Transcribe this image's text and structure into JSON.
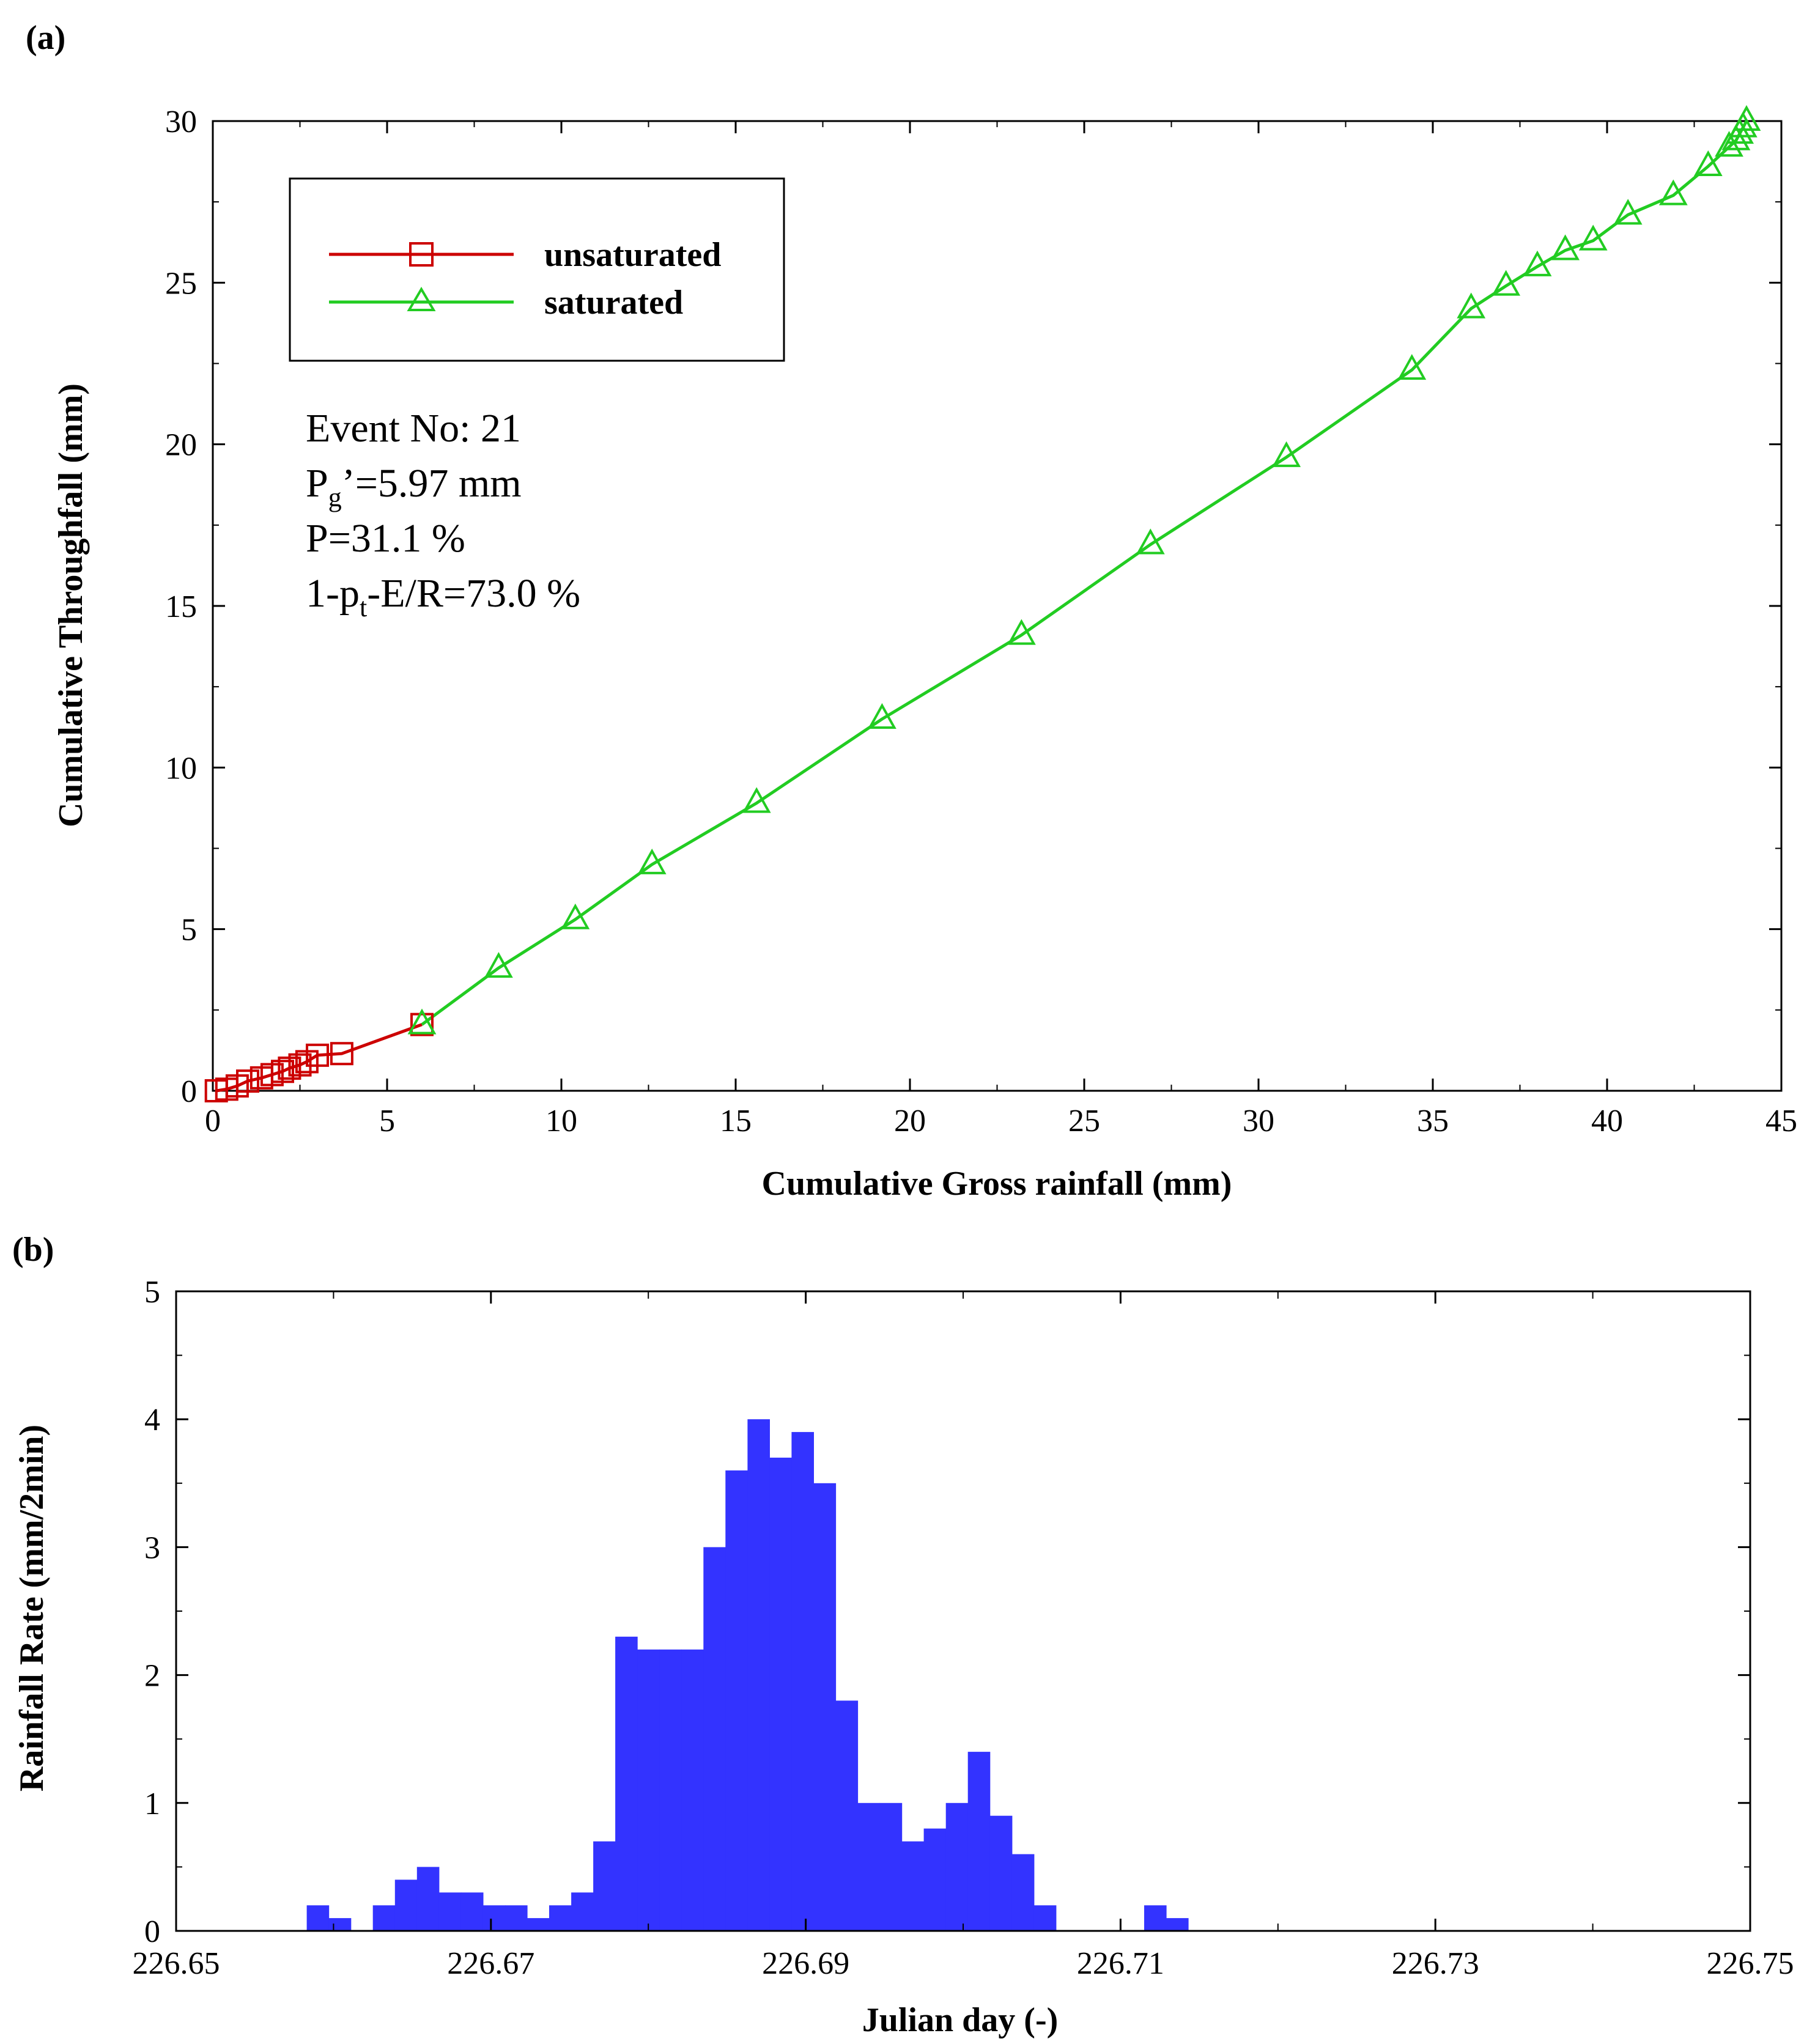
{
  "chart_data": [
    {
      "panel_label": "(a)",
      "type": "line",
      "xlabel": "Cumulative Gross rainfall (mm)",
      "ylabel": "Cumulative Throughfall (mm)",
      "xlim": [
        0,
        45
      ],
      "ylim": [
        0,
        30
      ],
      "xticks": [
        "0",
        "5",
        "10",
        "15",
        "20",
        "25",
        "30",
        "35",
        "40",
        "45"
      ],
      "yticks": [
        "0",
        "5",
        "10",
        "15",
        "20",
        "25",
        "30"
      ],
      "legend": {
        "position": "top-left",
        "unsaturated": "unsaturated",
        "saturated": "saturated"
      },
      "annotations": {
        "event": "Event No: 21",
        "pg_main": "P",
        "pg_sub": "g",
        "pg_rest": "’=5.97 mm",
        "p": "P=31.1 %",
        "ratio_main": "1-p",
        "ratio_sub": "t",
        "ratio_rest": "-E/R=73.0 %"
      },
      "series": [
        {
          "name": "unsaturated",
          "color": "#cc0000",
          "marker": "square",
          "x": [
            0.1,
            0.4,
            0.7,
            1.0,
            1.4,
            1.7,
            2.0,
            2.2,
            2.5,
            2.7,
            3.0,
            3.7,
            6.0
          ],
          "y": [
            0.0,
            0.05,
            0.15,
            0.3,
            0.4,
            0.5,
            0.6,
            0.7,
            0.8,
            0.9,
            1.1,
            1.15,
            2.05
          ]
        },
        {
          "name": "saturated",
          "color": "#22cc22",
          "marker": "triangle",
          "x": [
            6.0,
            8.2,
            10.4,
            12.6,
            15.6,
            19.2,
            23.2,
            26.9,
            30.8,
            34.4,
            36.1,
            37.1,
            38.0,
            38.8,
            39.6,
            40.6,
            41.9,
            42.9,
            43.5,
            43.7,
            43.8,
            43.9,
            44.0
          ],
          "y": [
            2.05,
            3.8,
            5.3,
            7.0,
            8.9,
            11.5,
            14.1,
            16.9,
            19.6,
            22.3,
            24.2,
            24.9,
            25.5,
            26.0,
            26.3,
            27.1,
            27.7,
            28.6,
            29.2,
            29.4,
            29.6,
            29.8,
            30.0
          ]
        }
      ]
    },
    {
      "panel_label": "(b)",
      "type": "bar",
      "xlabel": "Julian day (-)",
      "ylabel": "Rainfall Rate (mm/2min)",
      "xlim": [
        226.65,
        226.75
      ],
      "ylim": [
        0,
        5
      ],
      "xticks": [
        "226.65",
        "226.67",
        "226.69",
        "226.71",
        "226.73",
        "226.75"
      ],
      "yticks": [
        "0",
        "1",
        "2",
        "3",
        "4",
        "5"
      ],
      "color": "#3333ff",
      "bin_width": 0.0014,
      "bin_start": 226.6583,
      "values": [
        0.2,
        0.1,
        0.0,
        0.2,
        0.4,
        0.5,
        0.3,
        0.3,
        0.2,
        0.2,
        0.1,
        0.2,
        0.3,
        0.7,
        2.3,
        2.2,
        2.2,
        2.2,
        3.0,
        3.6,
        4.0,
        3.7,
        3.9,
        3.5,
        1.8,
        1.0,
        1.0,
        0.7,
        0.8,
        1.0,
        1.4,
        0.9,
        0.6,
        0.2,
        0.0,
        0.0,
        0.0,
        0.0,
        0.2,
        0.1
      ]
    }
  ]
}
